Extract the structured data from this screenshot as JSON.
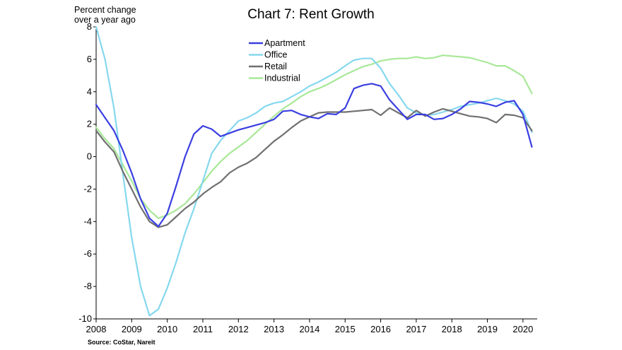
{
  "chart_data": {
    "type": "line",
    "title": "Chart 7: Rent Growth",
    "ylabel_line1": "Percent change",
    "ylabel_line2": "over a year ago",
    "source": "Source: CoStar, Nareit",
    "ylim": [
      -10,
      8
    ],
    "yticks": [
      -10,
      -8,
      -6,
      -4,
      -2,
      0,
      2,
      4,
      6,
      8
    ],
    "xlim": [
      2008,
      2020.4
    ],
    "xticks": [
      "2008",
      "2009",
      "2010",
      "2011",
      "2012",
      "2013",
      "2014",
      "2015",
      "2016",
      "2017",
      "2018",
      "2019",
      "2020"
    ],
    "grid": false,
    "legend_position": "top-center",
    "series": [
      {
        "name": "Apartment",
        "color": "#3a3fe0",
        "x": [
          2008.0,
          2008.25,
          2008.5,
          2008.75,
          2009.0,
          2009.25,
          2009.5,
          2009.75,
          2010.0,
          2010.25,
          2010.5,
          2010.75,
          2011.0,
          2011.25,
          2011.5,
          2011.75,
          2012.0,
          2012.25,
          2012.5,
          2012.75,
          2013.0,
          2013.25,
          2013.5,
          2013.75,
          2014.0,
          2014.25,
          2014.5,
          2014.75,
          2015.0,
          2015.25,
          2015.5,
          2015.75,
          2016.0,
          2016.25,
          2016.5,
          2016.75,
          2017.0,
          2017.25,
          2017.5,
          2017.75,
          2018.0,
          2018.25,
          2018.5,
          2018.75,
          2019.0,
          2019.25,
          2019.5,
          2019.75,
          2020.0,
          2020.25
        ],
        "y": [
          3.2,
          2.4,
          1.6,
          0.4,
          -1.0,
          -2.6,
          -3.8,
          -4.3,
          -3.5,
          -1.8,
          0.0,
          1.4,
          1.9,
          1.7,
          1.25,
          1.45,
          1.65,
          1.8,
          1.95,
          2.1,
          2.3,
          2.8,
          2.85,
          2.6,
          2.45,
          2.35,
          2.65,
          2.6,
          3.0,
          4.2,
          4.4,
          4.5,
          4.35,
          3.5,
          2.9,
          2.3,
          2.6,
          2.6,
          2.3,
          2.35,
          2.6,
          2.95,
          3.4,
          3.35,
          3.25,
          3.1,
          3.35,
          3.45,
          2.6,
          0.6
        ]
      },
      {
        "name": "Office",
        "color": "#86d8ee",
        "x": [
          2008.0,
          2008.25,
          2008.5,
          2008.75,
          2009.0,
          2009.25,
          2009.5,
          2009.75,
          2010.0,
          2010.25,
          2010.5,
          2010.75,
          2011.0,
          2011.25,
          2011.5,
          2011.75,
          2012.0,
          2012.25,
          2012.5,
          2012.75,
          2013.0,
          2013.25,
          2013.5,
          2013.75,
          2014.0,
          2014.25,
          2014.5,
          2014.75,
          2015.0,
          2015.25,
          2015.5,
          2015.75,
          2016.0,
          2016.25,
          2016.5,
          2016.75,
          2017.0,
          2017.25,
          2017.5,
          2017.75,
          2018.0,
          2018.25,
          2018.5,
          2018.75,
          2019.0,
          2019.25,
          2019.5,
          2019.75,
          2020.0,
          2020.25
        ],
        "y": [
          8.0,
          6.0,
          3.0,
          -1.0,
          -5.0,
          -8.0,
          -9.8,
          -9.4,
          -8.1,
          -6.5,
          -4.7,
          -3.2,
          -1.5,
          0.2,
          1.0,
          1.6,
          2.2,
          2.4,
          2.7,
          3.1,
          3.3,
          3.4,
          3.7,
          4.0,
          4.35,
          4.6,
          4.9,
          5.2,
          5.6,
          5.95,
          6.05,
          6.05,
          5.45,
          4.5,
          3.8,
          3.0,
          2.7,
          2.55,
          2.6,
          2.75,
          2.9,
          3.1,
          3.2,
          3.3,
          3.45,
          3.6,
          3.45,
          3.25,
          2.8,
          1.5
        ]
      },
      {
        "name": "Retail",
        "color": "#707070",
        "x": [
          2008.0,
          2008.25,
          2008.5,
          2008.75,
          2009.0,
          2009.25,
          2009.5,
          2009.75,
          2010.0,
          2010.25,
          2010.5,
          2010.75,
          2011.0,
          2011.25,
          2011.5,
          2011.75,
          2012.0,
          2012.25,
          2012.5,
          2012.75,
          2013.0,
          2013.25,
          2013.5,
          2013.75,
          2014.0,
          2014.25,
          2014.5,
          2014.75,
          2015.0,
          2015.25,
          2015.5,
          2015.75,
          2016.0,
          2016.25,
          2016.5,
          2016.75,
          2017.0,
          2017.25,
          2017.5,
          2017.75,
          2018.0,
          2018.25,
          2018.5,
          2018.75,
          2019.0,
          2019.25,
          2019.5,
          2019.75,
          2020.0,
          2020.25
        ],
        "y": [
          1.6,
          0.9,
          0.3,
          -0.9,
          -2.0,
          -3.1,
          -4.0,
          -4.35,
          -4.2,
          -3.7,
          -3.2,
          -2.8,
          -2.3,
          -1.9,
          -1.55,
          -1.0,
          -0.65,
          -0.4,
          -0.05,
          0.45,
          0.95,
          1.35,
          1.8,
          2.2,
          2.45,
          2.7,
          2.75,
          2.75,
          2.75,
          2.8,
          2.85,
          2.9,
          2.55,
          3.0,
          2.7,
          2.4,
          2.85,
          2.5,
          2.75,
          2.95,
          2.8,
          2.65,
          2.5,
          2.45,
          2.35,
          2.1,
          2.6,
          2.55,
          2.4,
          1.6
        ]
      },
      {
        "name": "Industrial",
        "color": "#a8e898",
        "x": [
          2008.0,
          2008.25,
          2008.5,
          2008.75,
          2009.0,
          2009.25,
          2009.5,
          2009.75,
          2010.0,
          2010.25,
          2010.5,
          2010.75,
          2011.0,
          2011.25,
          2011.5,
          2011.75,
          2012.0,
          2012.25,
          2012.5,
          2012.75,
          2013.0,
          2013.25,
          2013.5,
          2013.75,
          2014.0,
          2014.25,
          2014.5,
          2014.75,
          2015.0,
          2015.25,
          2015.5,
          2015.75,
          2016.0,
          2016.25,
          2016.5,
          2016.75,
          2017.0,
          2017.25,
          2017.5,
          2017.75,
          2018.0,
          2018.25,
          2018.5,
          2018.75,
          2019.0,
          2019.25,
          2019.5,
          2019.75,
          2020.0,
          2020.25
        ],
        "y": [
          1.8,
          1.1,
          0.5,
          -0.5,
          -1.5,
          -2.6,
          -3.3,
          -3.8,
          -3.6,
          -3.3,
          -2.9,
          -2.3,
          -1.6,
          -0.9,
          -0.3,
          0.2,
          0.6,
          1.0,
          1.5,
          2.0,
          2.5,
          2.95,
          3.3,
          3.7,
          4.0,
          4.2,
          4.45,
          4.75,
          5.05,
          5.3,
          5.55,
          5.7,
          5.9,
          6.0,
          6.05,
          6.05,
          6.15,
          6.05,
          6.1,
          6.25,
          6.2,
          6.15,
          6.1,
          5.95,
          5.8,
          5.6,
          5.6,
          5.3,
          4.95,
          3.9
        ]
      }
    ]
  }
}
